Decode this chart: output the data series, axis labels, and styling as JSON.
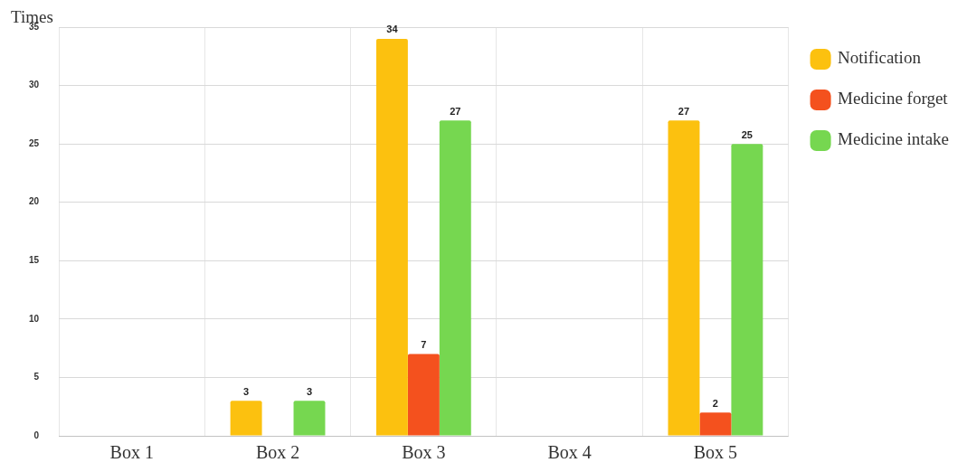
{
  "chart_data": {
    "type": "bar",
    "ylabel": "Times",
    "categories": [
      "Box 1",
      "Box 2",
      "Box 3",
      "Box 4",
      "Box 5"
    ],
    "series": [
      {
        "name": "Notification",
        "color": "#fcc10f",
        "values": [
          0,
          3,
          34,
          0,
          27
        ],
        "value_labels": [
          null,
          "3",
          "34",
          null,
          "27"
        ]
      },
      {
        "name": "Medicine forget",
        "color": "#f4511e",
        "values": [
          0,
          0,
          7,
          0,
          2
        ],
        "value_labels": [
          null,
          null,
          "7",
          null,
          "2"
        ]
      },
      {
        "name": "Medicine intake",
        "color": "#76d750",
        "values": [
          0,
          3,
          27,
          0,
          25
        ],
        "value_labels": [
          null,
          "3",
          "27",
          null,
          "25"
        ]
      }
    ],
    "ylim": [
      0,
      35
    ],
    "yticks": [
      0,
      5,
      10,
      15,
      20,
      25,
      30,
      35
    ],
    "grid": true,
    "legend": "right"
  }
}
